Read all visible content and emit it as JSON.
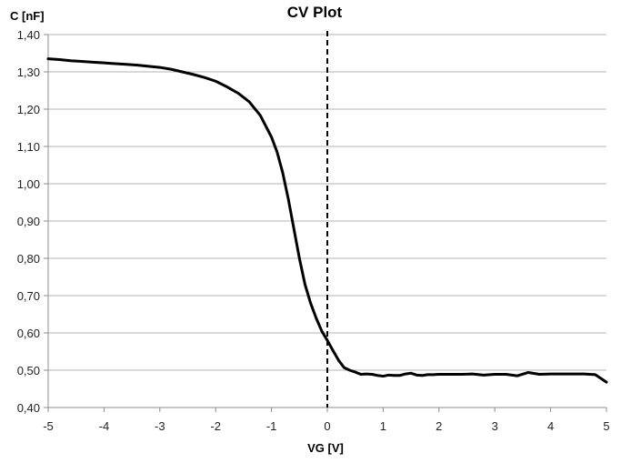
{
  "chart_data": {
    "type": "line",
    "title": "CV Plot",
    "xlabel": "VG [V]",
    "ylabel": "C [nF]",
    "xlim": [
      -5,
      5
    ],
    "ylim": [
      0.4,
      1.4
    ],
    "x_ticks": [
      "-5",
      "-4",
      "-3",
      "-2",
      "-1",
      "0",
      "1",
      "2",
      "3",
      "4",
      "5"
    ],
    "y_ticks": [
      "0,40",
      "0,50",
      "0,60",
      "0,70",
      "0,80",
      "0,90",
      "1,00",
      "1,10",
      "1,20",
      "1,30",
      "1,40"
    ],
    "grid": true,
    "legend": "none",
    "reference_line": {
      "x": 0,
      "style": "dashed"
    },
    "series": [
      {
        "color": "#000000",
        "x": [
          -5.0,
          -4.8,
          -4.6,
          -4.4,
          -4.2,
          -4.0,
          -3.8,
          -3.6,
          -3.4,
          -3.2,
          -3.0,
          -2.8,
          -2.6,
          -2.4,
          -2.2,
          -2.0,
          -1.8,
          -1.6,
          -1.4,
          -1.2,
          -1.0,
          -0.9,
          -0.8,
          -0.7,
          -0.6,
          -0.5,
          -0.4,
          -0.3,
          -0.2,
          -0.1,
          0.0,
          0.1,
          0.2,
          0.3,
          0.4,
          0.5,
          0.6,
          0.7,
          0.8,
          0.9,
          1.0,
          1.1,
          1.2,
          1.3,
          1.4,
          1.5,
          1.6,
          1.7,
          1.8,
          1.9,
          2.0,
          2.2,
          2.4,
          2.6,
          2.8,
          3.0,
          3.2,
          3.4,
          3.6,
          3.8,
          4.0,
          4.2,
          4.4,
          4.6,
          4.8,
          5.0
        ],
        "y": [
          1.335,
          1.333,
          1.33,
          1.328,
          1.326,
          1.324,
          1.322,
          1.32,
          1.318,
          1.315,
          1.312,
          1.307,
          1.3,
          1.293,
          1.285,
          1.275,
          1.26,
          1.243,
          1.22,
          1.183,
          1.125,
          1.085,
          1.03,
          0.96,
          0.88,
          0.8,
          0.73,
          0.68,
          0.64,
          0.605,
          0.58,
          0.553,
          0.527,
          0.507,
          0.5,
          0.495,
          0.489,
          0.49,
          0.489,
          0.486,
          0.484,
          0.487,
          0.486,
          0.486,
          0.49,
          0.492,
          0.487,
          0.486,
          0.488,
          0.488,
          0.489,
          0.489,
          0.489,
          0.49,
          0.487,
          0.489,
          0.489,
          0.485,
          0.494,
          0.489,
          0.49,
          0.49,
          0.49,
          0.49,
          0.488,
          0.468
        ]
      }
    ]
  }
}
